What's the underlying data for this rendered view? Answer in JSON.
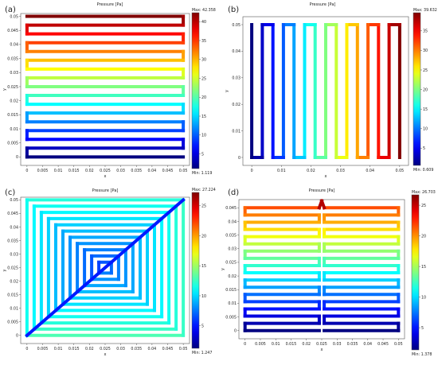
{
  "chart_data": [
    {
      "type": "heatmap",
      "panel_label": "(a)",
      "title": "Pressure [Pa]",
      "xlabel": "x",
      "ylabel": "y",
      "xlim": [
        -0.002,
        0.052
      ],
      "ylim": [
        -0.003,
        0.051
      ],
      "xticks": [
        "0",
        "0.005",
        "0.01",
        "0.015",
        "0.02",
        "0.025",
        "0.03",
        "0.035",
        "0.04",
        "0.045",
        "0.05"
      ],
      "yticks": [
        "0",
        "0.005",
        "0.01",
        "0.015",
        "0.02",
        "0.025",
        "0.03",
        "0.035",
        "0.04",
        "0.045",
        "0.05"
      ],
      "colorbar": {
        "max_label": "Max: 42.358",
        "min_label": "Min: 1.119",
        "max": 42.358,
        "min": 1.119,
        "ticks": [
          "5",
          "10",
          "15",
          "20",
          "25",
          "30",
          "35",
          "40"
        ]
      },
      "pattern": "serpentine-horizontal",
      "channel_count": 17
    },
    {
      "type": "heatmap",
      "panel_label": "(b)",
      "title": "Pressure [Pa]",
      "xlabel": "x",
      "ylabel": "y",
      "xlim": [
        -0.003,
        0.053
      ],
      "ylim": [
        -0.003,
        0.053
      ],
      "xticks": [
        "0",
        "0.01",
        "0.02",
        "0.03",
        "0.04",
        "0.05"
      ],
      "yticks": [
        "0",
        "0.01",
        "0.02",
        "0.03",
        "0.04",
        "0.05"
      ],
      "colorbar": {
        "max_label": "Max: 39.632",
        "min_label": "Min: 0.609",
        "max": 39.632,
        "min": 0.609,
        "ticks": [
          "5",
          "10",
          "15",
          "20",
          "25",
          "30",
          "35"
        ]
      },
      "pattern": "serpentine-vertical",
      "channel_count": 15
    },
    {
      "type": "heatmap",
      "panel_label": "(c)",
      "title": "Pressure [Pa]",
      "xlabel": "x",
      "ylabel": "y",
      "xlim": [
        -0.002,
        0.052
      ],
      "ylim": [
        -0.003,
        0.051
      ],
      "xticks": [
        "0",
        "0.005",
        "0.01",
        "0.015",
        "0.02",
        "0.025",
        "0.03",
        "0.035",
        "0.04",
        "0.045",
        "0.05"
      ],
      "yticks": [
        "0",
        "0.005",
        "0.01",
        "0.015",
        "0.02",
        "0.025",
        "0.03",
        "0.035",
        "0.04",
        "0.045",
        "0.05"
      ],
      "colorbar": {
        "max_label": "Max: 27.224",
        "min_label": "Min: 1.247",
        "max": 27.224,
        "min": 1.247,
        "ticks": [
          "5",
          "10",
          "15",
          "20",
          "25"
        ]
      },
      "pattern": "concentric-squares-with-diagonal",
      "ring_count": 11
    },
    {
      "type": "heatmap",
      "panel_label": "(d)",
      "title": "Pressure [Pa]",
      "xlabel": "x",
      "ylabel": "y",
      "xlim": [
        -0.002,
        0.052
      ],
      "ylim": [
        -0.003,
        0.048
      ],
      "xticks": [
        "0",
        "0.005",
        "0.01",
        "0.015",
        "0.02",
        "0.025",
        "0.03",
        "0.035",
        "0.04",
        "0.045",
        "0.05"
      ],
      "yticks": [
        "0",
        "0.005",
        "0.01",
        "0.015",
        "0.02",
        "0.025",
        "0.03",
        "0.035",
        "0.04",
        "0.045"
      ],
      "colorbar": {
        "max_label": "Max: 26.703",
        "min_label": "Min: 1.378",
        "max": 26.703,
        "min": 1.378,
        "ticks": [
          "5",
          "10",
          "15",
          "20",
          "25"
        ]
      },
      "pattern": "double-serpentine",
      "channel_count": 18
    }
  ]
}
